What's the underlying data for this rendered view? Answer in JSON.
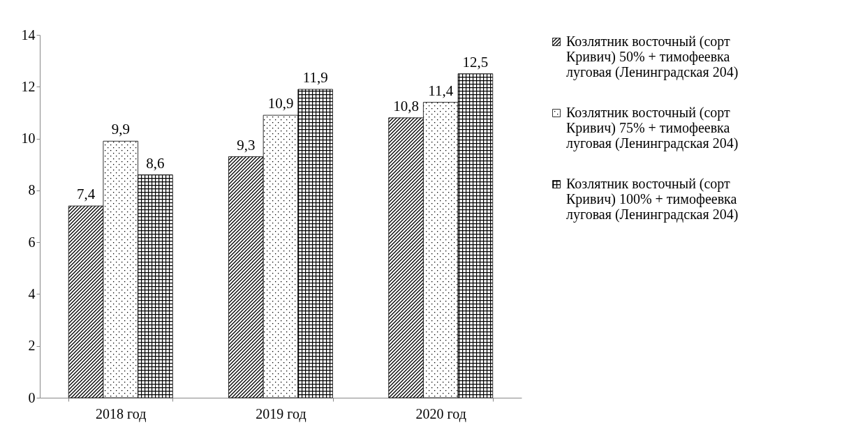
{
  "chart_data": {
    "type": "bar",
    "categories": [
      "2018 год",
      "2019 год",
      "2020 год"
    ],
    "series": [
      {
        "name": "Козлятник восточный (сорт Кривич) 50% + тимофеевка луговая (Ленинградская 204)",
        "color": "#000000",
        "values": [
          7.4,
          9.3,
          10.8
        ],
        "value_labels": [
          "7,4",
          "9,3",
          "10,8"
        ]
      },
      {
        "name": "Козлятник восточный (сорт Кривич) 75% + тимофеевка луговая (Ленинградская 204)",
        "color": "#000000",
        "values": [
          9.9,
          10.9,
          11.4
        ],
        "value_labels": [
          "9,9",
          "10,9",
          "11,4"
        ]
      },
      {
        "name": "Козлятник восточный (сорт Кривич) 100% + тимофеевка луговая (Ленинградская 204)",
        "color": "#000000",
        "values": [
          8.6,
          11.9,
          12.5
        ],
        "value_labels": [
          "8,6",
          "11,9",
          "12,5"
        ]
      }
    ],
    "ylim": [
      0,
      14
    ],
    "yticks": [
      0,
      2,
      4,
      6,
      8,
      10,
      12,
      14
    ],
    "grid": false,
    "legend": "right"
  }
}
